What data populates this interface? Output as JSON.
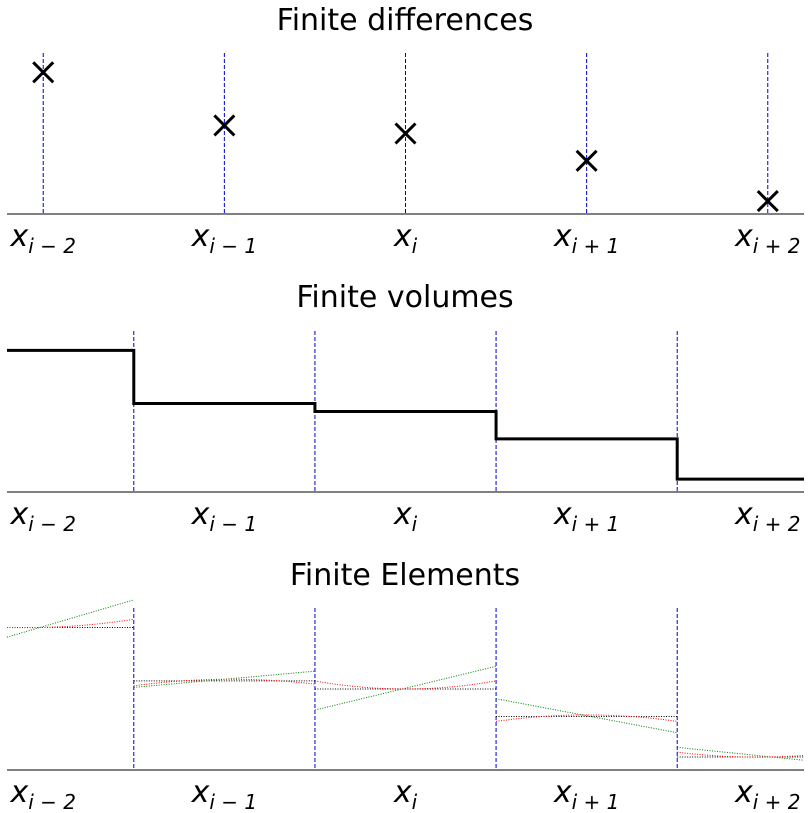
{
  "chart_data": [
    {
      "type": "scatter",
      "title": "Finite differences",
      "xlabel": "",
      "ylabel": "",
      "x_ticks": [
        {
          "base": "x",
          "sub": "i − 2"
        },
        {
          "base": "x",
          "sub": "i − 1"
        },
        {
          "base": "x",
          "sub": "i"
        },
        {
          "base": "x",
          "sub": "i + 1"
        },
        {
          "base": "x",
          "sub": "i + 2"
        }
      ],
      "x": [
        0,
        1,
        2,
        3,
        4
      ],
      "y": [
        0.88,
        0.55,
        0.5,
        0.33,
        0.08
      ],
      "xlim": [
        -0.2,
        4.2
      ],
      "ylim": [
        0,
        1
      ],
      "marker": "x",
      "marker_color": "#000000",
      "gridline_color": "#0000cc",
      "gridlines_at": "points"
    },
    {
      "type": "line",
      "title": "Finite volumes",
      "xlabel": "",
      "ylabel": "",
      "x_ticks": [
        {
          "base": "x",
          "sub": "i − 2"
        },
        {
          "base": "x",
          "sub": "i − 1"
        },
        {
          "base": "x",
          "sub": "i"
        },
        {
          "base": "x",
          "sub": "i + 1"
        },
        {
          "base": "x",
          "sub": "i + 2"
        }
      ],
      "cell_edges": [
        -0.2,
        0.5,
        1.5,
        2.5,
        3.5,
        4.2
      ],
      "cell_values": [
        0.88,
        0.55,
        0.5,
        0.33,
        0.08
      ],
      "xlim": [
        -0.2,
        4.2
      ],
      "ylim": [
        0,
        1
      ],
      "line_color": "#000000",
      "gridline_color": "#0000cc",
      "gridlines_at": "cell_edges"
    },
    {
      "type": "line",
      "title": "Finite Elements",
      "xlabel": "",
      "ylabel": "",
      "x_ticks": [
        {
          "base": "x",
          "sub": "i − 2"
        },
        {
          "base": "x",
          "sub": "i − 1"
        },
        {
          "base": "x",
          "sub": "i"
        },
        {
          "base": "x",
          "sub": "i + 1"
        },
        {
          "base": "x",
          "sub": "i + 2"
        }
      ],
      "cell_edges": [
        -0.2,
        0.5,
        1.5,
        2.5,
        3.5,
        4.2
      ],
      "xlim": [
        -0.2,
        4.2
      ],
      "ylim": [
        0,
        1
      ],
      "gridline_color": "#0000cc",
      "series": [
        {
          "color": "#000000",
          "style": "dotted",
          "segments": [
            [
              [
                -0.2,
                0.88
              ],
              [
                0.5,
                0.88
              ]
            ],
            [
              [
                0.5,
                0.55
              ],
              [
                1.5,
                0.55
              ]
            ],
            [
              [
                1.5,
                0.5
              ],
              [
                2.5,
                0.5
              ]
            ],
            [
              [
                2.5,
                0.33
              ],
              [
                3.5,
                0.33
              ]
            ],
            [
              [
                3.5,
                0.08
              ],
              [
                4.2,
                0.08
              ]
            ]
          ]
        },
        {
          "color": "#008000",
          "style": "dotted",
          "segments": [
            [
              [
                -0.2,
                0.82
              ],
              [
                0.5,
                1.05
              ]
            ],
            [
              [
                0.5,
                0.51
              ],
              [
                1.5,
                0.61
              ]
            ],
            [
              [
                1.5,
                0.37
              ],
              [
                2.5,
                0.64
              ]
            ],
            [
              [
                2.5,
                0.44
              ],
              [
                3.5,
                0.23
              ]
            ],
            [
              [
                3.5,
                0.14
              ],
              [
                4.2,
                0.06
              ]
            ]
          ]
        },
        {
          "color": "#ff0000",
          "style": "dotted",
          "segments": [
            [
              [
                -0.2,
                0.88
              ],
              [
                0.0,
                0.88
              ],
              [
                0.5,
                0.93
              ]
            ],
            [
              [
                0.5,
                0.52
              ],
              [
                1.0,
                0.56
              ],
              [
                1.5,
                0.53
              ]
            ],
            [
              [
                1.5,
                0.55
              ],
              [
                2.0,
                0.5
              ],
              [
                2.5,
                0.55
              ]
            ],
            [
              [
                2.5,
                0.3
              ],
              [
                3.0,
                0.34
              ],
              [
                3.5,
                0.3
              ]
            ],
            [
              [
                3.5,
                0.11
              ],
              [
                4.0,
                0.08
              ],
              [
                4.2,
                0.09
              ]
            ]
          ]
        }
      ]
    }
  ]
}
